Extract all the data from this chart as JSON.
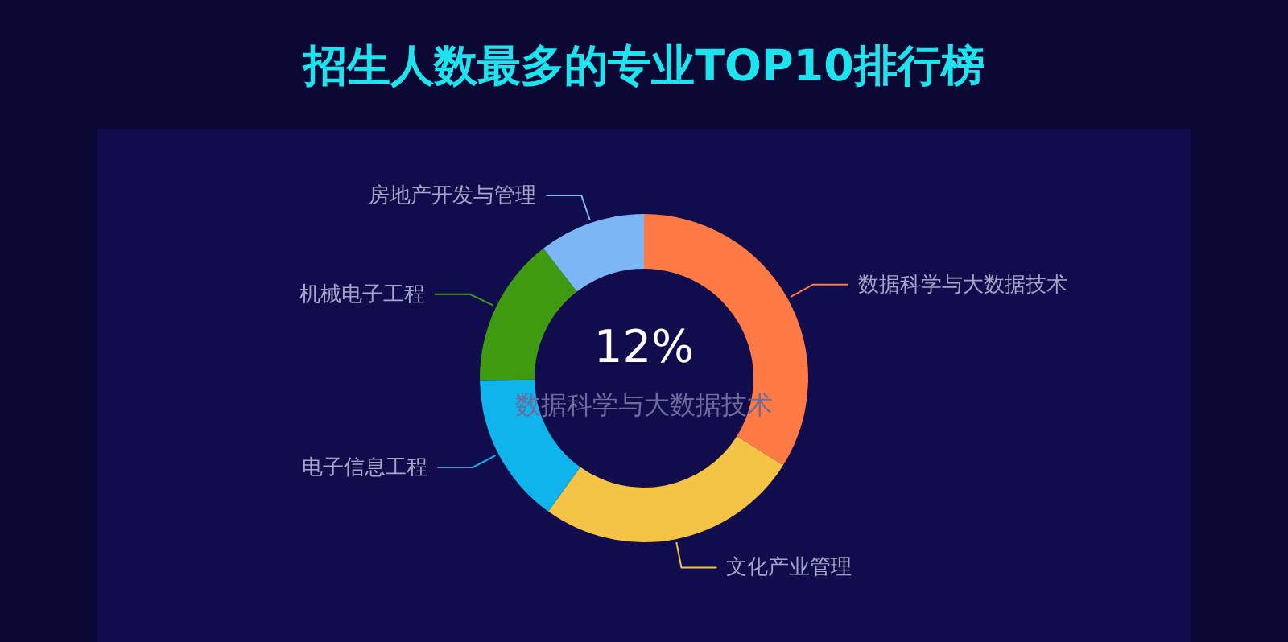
{
  "chart_data": {
    "type": "donut",
    "title": "招生人数最多的专业TOP10排行榜",
    "categories": [
      "数据科学与大数据技术",
      "文化产业管理",
      "电子信息工程",
      "机械电子工程",
      "房地产开发与管理"
    ],
    "values": [
      33.9,
      26.0,
      14.9,
      14.7,
      10.5
    ],
    "colors": [
      "#ff7a45",
      "#f5c445",
      "#0fb4ec",
      "#3f9a12",
      "#7cb6f4"
    ],
    "annotations": [
      "12%",
      "数据科学与大数据技术"
    ]
  }
}
